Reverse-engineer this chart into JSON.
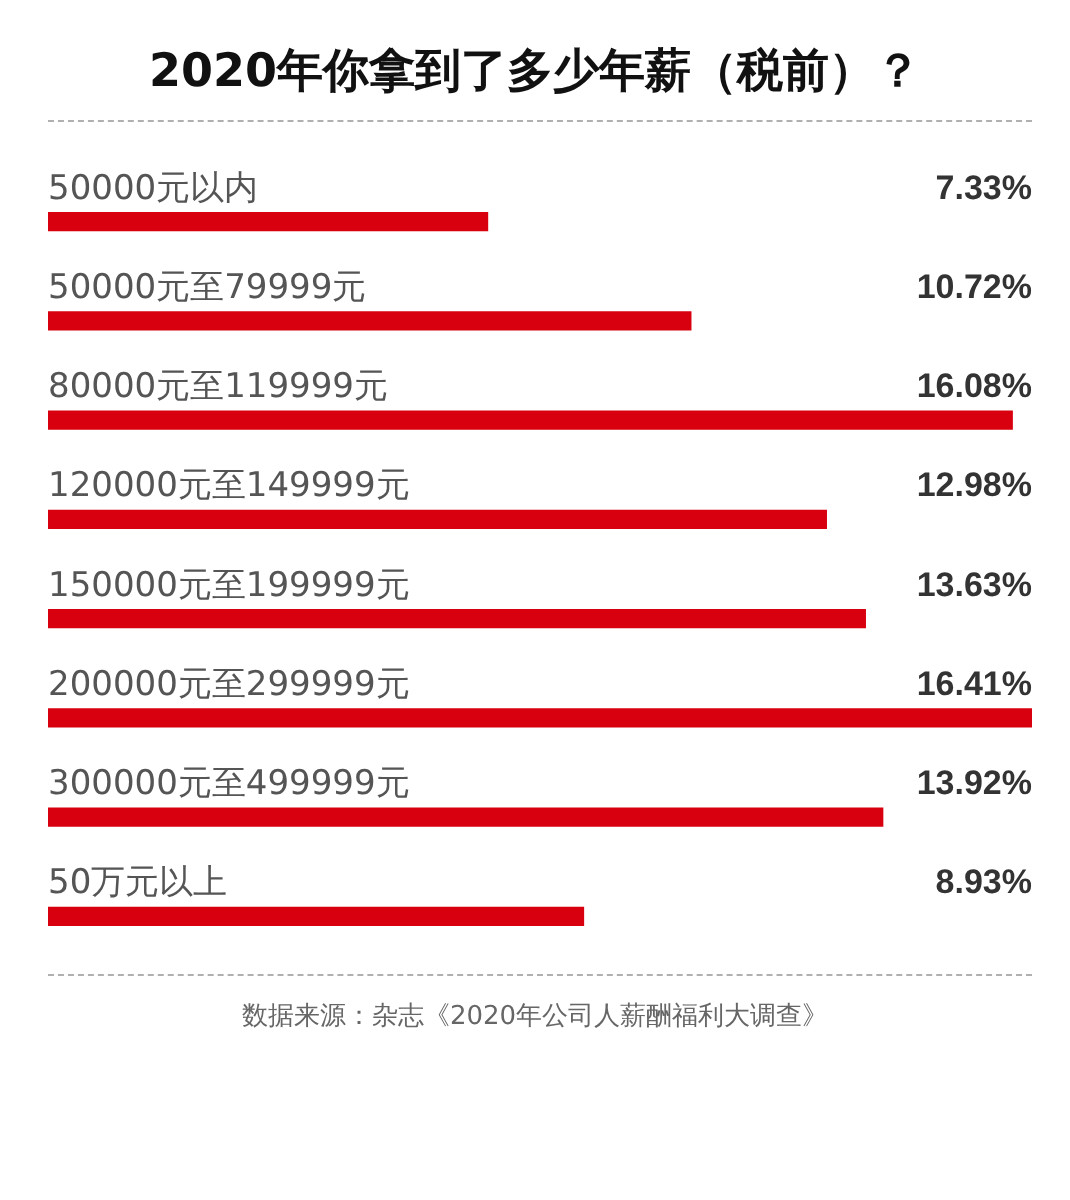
{
  "chart_data": {
    "type": "bar",
    "orientation": "horizontal",
    "title": "2020年你拿到了多少年薪（税前）？",
    "categories": [
      "50000元以内",
      "50000元至79999元",
      "80000元至119999元",
      "120000元至149999元",
      "150000元至199999元",
      "200000元至299999元",
      "300000元至499999元",
      "50万元以上"
    ],
    "values": [
      7.33,
      10.72,
      16.08,
      12.98,
      13.63,
      16.41,
      13.92,
      8.93
    ],
    "value_labels": [
      "7.33%",
      "10.72%",
      "16.08%",
      "12.98%",
      "13.63%",
      "16.41%",
      "13.92%",
      "8.93%"
    ],
    "color": "#d8000f",
    "annotations": [
      "数据来源：杂志《2020年公司人薪酬福利大调查》"
    ]
  }
}
